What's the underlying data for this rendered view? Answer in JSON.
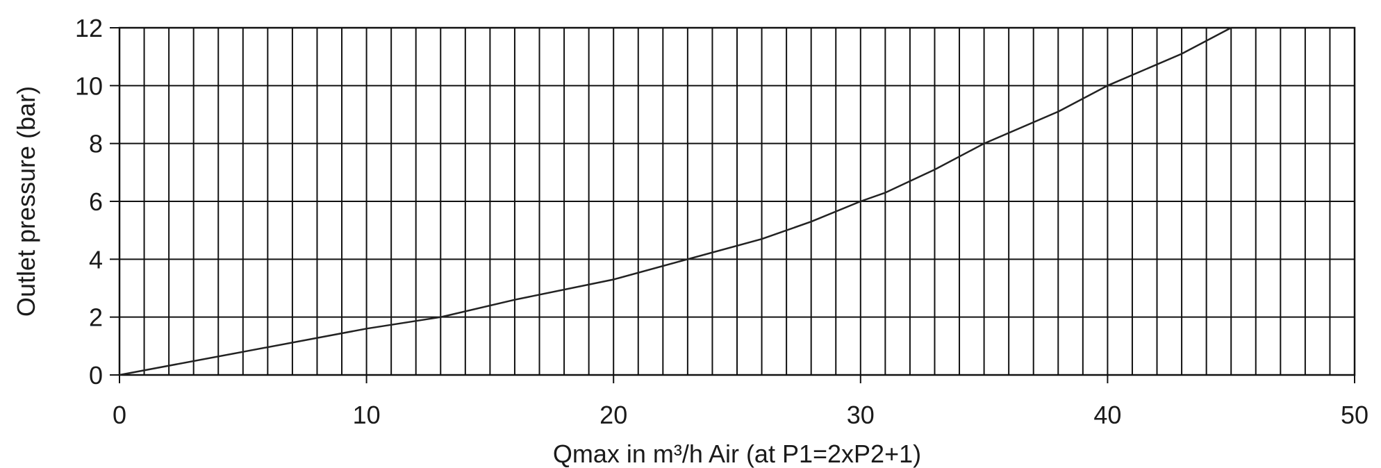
{
  "chart_data": {
    "type": "line",
    "title": "",
    "xlabel": "Qmax in m³/h Air (at  P1=2xP2+1)",
    "ylabel": "Outlet pressure  (bar)",
    "xlim": [
      0,
      50
    ],
    "ylim": [
      0,
      12
    ],
    "x_ticks": [
      "0",
      "10",
      "20",
      "30",
      "40",
      "50"
    ],
    "y_ticks": [
      "0",
      "2",
      "4",
      "6",
      "8",
      "10",
      "12"
    ],
    "grid": {
      "vertical_step": 1,
      "horizontal_step": 2
    },
    "series": [
      {
        "x": [
          0,
          5,
          10,
          13,
          16,
          20,
          23,
          26,
          28,
          30,
          31,
          33,
          35,
          38,
          40,
          43,
          45
        ],
        "y": [
          0,
          0.8,
          1.6,
          2.0,
          2.6,
          3.3,
          4.0,
          4.7,
          5.3,
          6.0,
          6.3,
          7.1,
          8.0,
          9.1,
          10.0,
          11.1,
          12.0
        ]
      }
    ],
    "colors": {
      "line": "#222222",
      "grid": "#111111",
      "background": "#ffffff"
    }
  }
}
